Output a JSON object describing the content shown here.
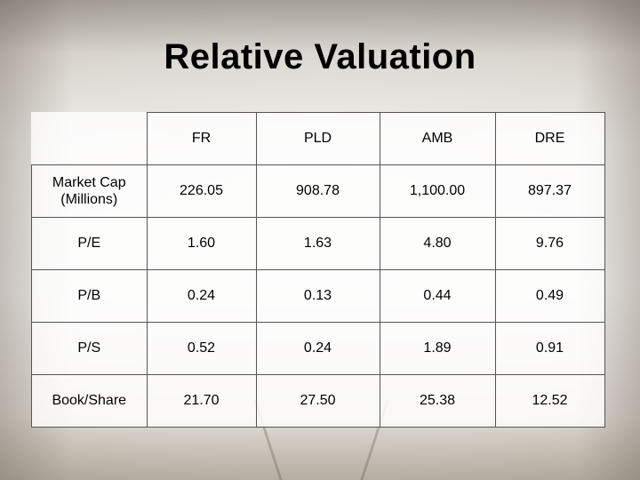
{
  "title": "Relative Valuation",
  "table": {
    "columns": [
      "FR",
      "PLD",
      "AMB",
      "DRE"
    ],
    "rows": [
      {
        "label_line1": "Market Cap",
        "label_line2": "(Millions)",
        "values": [
          "226.05",
          "908.78",
          "1,100.00",
          "897.37"
        ]
      },
      {
        "label_line1": "P/E",
        "label_line2": "",
        "values": [
          "1.60",
          "1.63",
          "4.80",
          "9.76"
        ]
      },
      {
        "label_line1": "P/B",
        "label_line2": "",
        "values": [
          "0.24",
          "0.13",
          "0.44",
          "0.49"
        ]
      },
      {
        "label_line1": "P/S",
        "label_line2": "",
        "values": [
          "0.52",
          "0.24",
          "1.89",
          "0.91"
        ]
      },
      {
        "label_line1": "Book/Share",
        "label_line2": "",
        "values": [
          "21.70",
          "27.50",
          "25.38",
          "12.52"
        ]
      }
    ]
  }
}
